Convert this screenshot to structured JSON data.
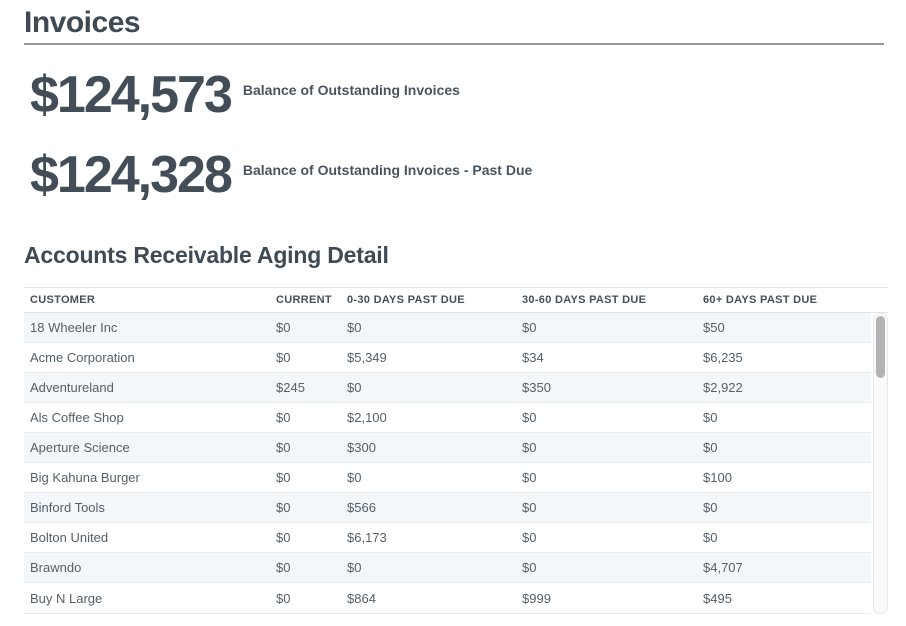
{
  "page": {
    "title": "Invoices"
  },
  "metrics": [
    {
      "value": "$124,573",
      "label": "Balance of Outstanding Invoices"
    },
    {
      "value": "$124,328",
      "label": "Balance of Outstanding Invoices - Past Due"
    }
  ],
  "section": {
    "title": "Accounts Receivable Aging Detail"
  },
  "table": {
    "columns": [
      "CUSTOMER",
      "CURRENT",
      "0-30 DAYS PAST DUE",
      "30-60 DAYS PAST DUE",
      "60+ DAYS PAST DUE"
    ],
    "rows": [
      [
        "18 Wheeler Inc",
        "$0",
        "$0",
        "$0",
        "$50"
      ],
      [
        "Acme Corporation",
        "$0",
        "$5,349",
        "$34",
        "$6,235"
      ],
      [
        "Adventureland",
        "$245",
        "$0",
        "$350",
        "$2,922"
      ],
      [
        "Als Coffee Shop",
        "$0",
        "$2,100",
        "$0",
        "$0"
      ],
      [
        "Aperture Science",
        "$0",
        "$300",
        "$0",
        "$0"
      ],
      [
        "Big Kahuna Burger",
        "$0",
        "$0",
        "$0",
        "$100"
      ],
      [
        "Binford Tools",
        "$0",
        "$566",
        "$0",
        "$0"
      ],
      [
        "Bolton United",
        "$0",
        "$6,173",
        "$0",
        "$0"
      ],
      [
        "Brawndo",
        "$0",
        "$0",
        "$0",
        "$4,707"
      ],
      [
        "Buy N Large",
        "$0",
        "$864",
        "$999",
        "$495"
      ]
    ]
  },
  "colors": {
    "heading": "#3f4a55",
    "metric_value": "#424d57",
    "row_alt_bg": "#f3f7fa",
    "row_border": "#e9ebed",
    "divider": "#9a9a9a",
    "scrollbar_thumb": "#b3b3b3"
  }
}
